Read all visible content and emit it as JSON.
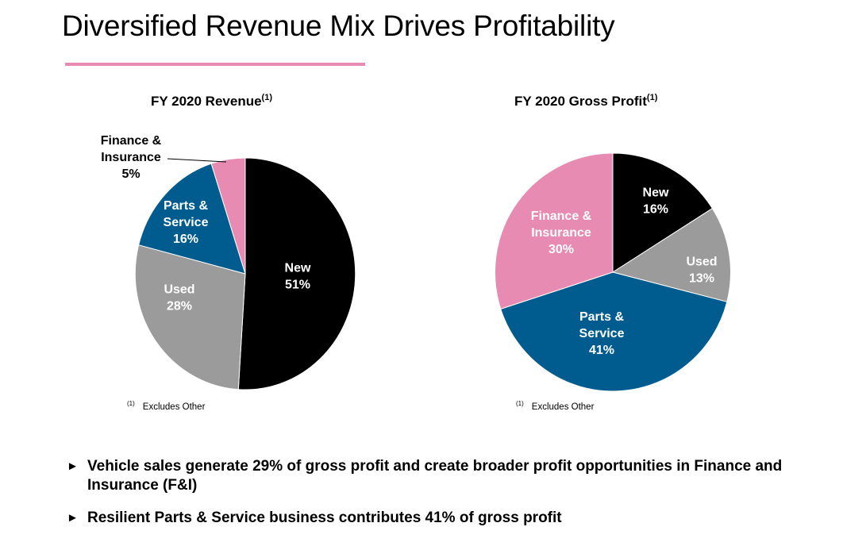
{
  "title": "Diversified Revenue Mix Drives Profitability",
  "accent_color": "#e88bb3",
  "colors": {
    "New": "#000000",
    "Used": "#9b9b9b",
    "Parts & Service": "#005c8e",
    "Finance & Insurance": "#e88bb3"
  },
  "chart_data": [
    {
      "type": "pie",
      "title": "FY 2020 Revenue",
      "title_superscript": "(1)",
      "slices": [
        {
          "label": "New",
          "value": 51,
          "display": "51%"
        },
        {
          "label": "Used",
          "value": 28,
          "display": "28%"
        },
        {
          "label": "Parts & Service",
          "value": 16,
          "display": "16%"
        },
        {
          "label": "Finance & Insurance",
          "value": 5,
          "display": "5%"
        }
      ],
      "footnote_marker": "(1)",
      "footnote": "Excludes Other"
    },
    {
      "type": "pie",
      "title": "FY 2020 Gross Profit",
      "title_superscript": "(1)",
      "slices": [
        {
          "label": "New",
          "value": 16,
          "display": "16%"
        },
        {
          "label": "Used",
          "value": 13,
          "display": "13%"
        },
        {
          "label": "Parts & Service",
          "value": 41,
          "display": "41%"
        },
        {
          "label": "Finance & Insurance",
          "value": 30,
          "display": "30%"
        }
      ],
      "footnote_marker": "(1)",
      "footnote": "Excludes Other"
    }
  ],
  "bullets": [
    {
      "marker": "►",
      "text": "Vehicle sales generate 29% of gross profit and create broader profit opportunities in Finance and Insurance (F&I)"
    },
    {
      "marker": "►",
      "text": "Resilient Parts & Service business contributes 41% of gross profit"
    }
  ]
}
